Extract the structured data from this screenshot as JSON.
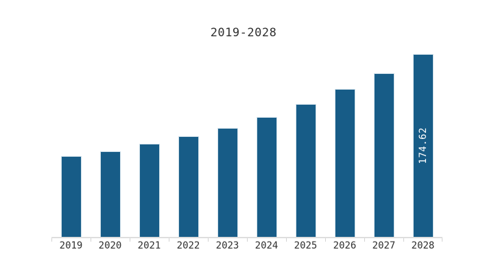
{
  "page": {
    "background_color": "#ffffff"
  },
  "chart_data": {
    "type": "bar",
    "title": "2019-2028",
    "categories": [
      "2019",
      "2020",
      "2021",
      "2022",
      "2023",
      "2024",
      "2025",
      "2026",
      "2027",
      "2028"
    ],
    "values": [
      76.9,
      81.9,
      88.9,
      96.0,
      104.3,
      114.5,
      126.8,
      141.2,
      156.4,
      174.62
    ],
    "values_estimated_from_bar_heights": true,
    "data_labels": {
      "2028": "174.62"
    },
    "xlabel": "",
    "ylabel": "",
    "ylim": [
      0,
      174.62
    ],
    "grid": false,
    "legend": "none",
    "y_axis_visible": false,
    "bar_color": "#175c87",
    "bar_border_color": "#cfe0ea",
    "data_label_color": "#ffffff",
    "axis_color": "#dedede",
    "text_color": "#2e2e2e"
  }
}
